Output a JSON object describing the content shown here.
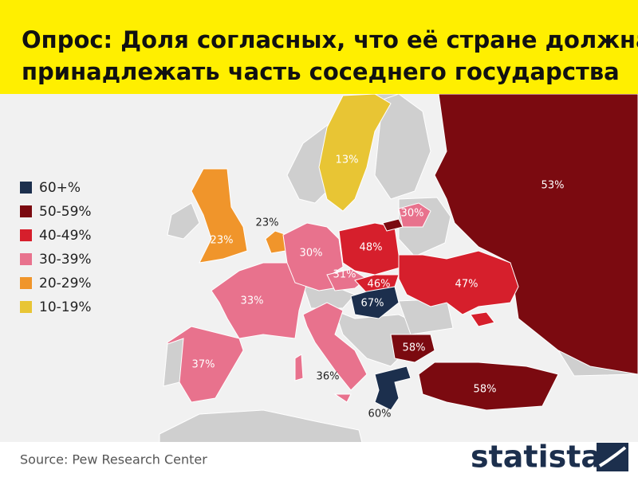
{
  "header": {
    "title_lines": [
      "Опрос: Доля согласных, что её стране должна",
      "принадлежать часть соседнего государства"
    ]
  },
  "legend": [
    {
      "label": "60+%",
      "color": "#1c2f4d"
    },
    {
      "label": "50-59%",
      "color": "#7b0a10"
    },
    {
      "label": "40-49%",
      "color": "#d61f2c"
    },
    {
      "label": "30-39%",
      "color": "#e8728d"
    },
    {
      "label": "20-29%",
      "color": "#f0952b"
    },
    {
      "label": "10-19%",
      "color": "#e8c534"
    }
  ],
  "regions": [
    {
      "label": "53%",
      "color": "#7b0a10"
    },
    {
      "label": "13%",
      "color": "#e8c534"
    },
    {
      "label": "23%",
      "color": "#f0952b"
    },
    {
      "label": "23%",
      "color": "#f0952b"
    },
    {
      "label": "33%",
      "color": "#e8728d"
    },
    {
      "label": "37%",
      "color": "#e8728d"
    },
    {
      "label": "30%",
      "color": "#e8728d"
    },
    {
      "label": "31%",
      "color": "#e8728d"
    },
    {
      "label": "48%",
      "color": "#d61f2c"
    },
    {
      "label": "30%",
      "color": "#e8728d"
    },
    {
      "label": "46%",
      "color": "#d61f2c"
    },
    {
      "label": "67%",
      "color": "#1c2f4d"
    },
    {
      "label": "47%",
      "color": "#d61f2c"
    },
    {
      "label": "36%",
      "color": "#e8728d"
    },
    {
      "label": "58%",
      "color": "#7b0a10"
    },
    {
      "label": "58%",
      "color": "#7b0a10"
    },
    {
      "label": "60%",
      "color": "#1c2f4d"
    }
  ],
  "footer": {
    "source": "Source: Pew Research Center",
    "logo": "statista"
  }
}
